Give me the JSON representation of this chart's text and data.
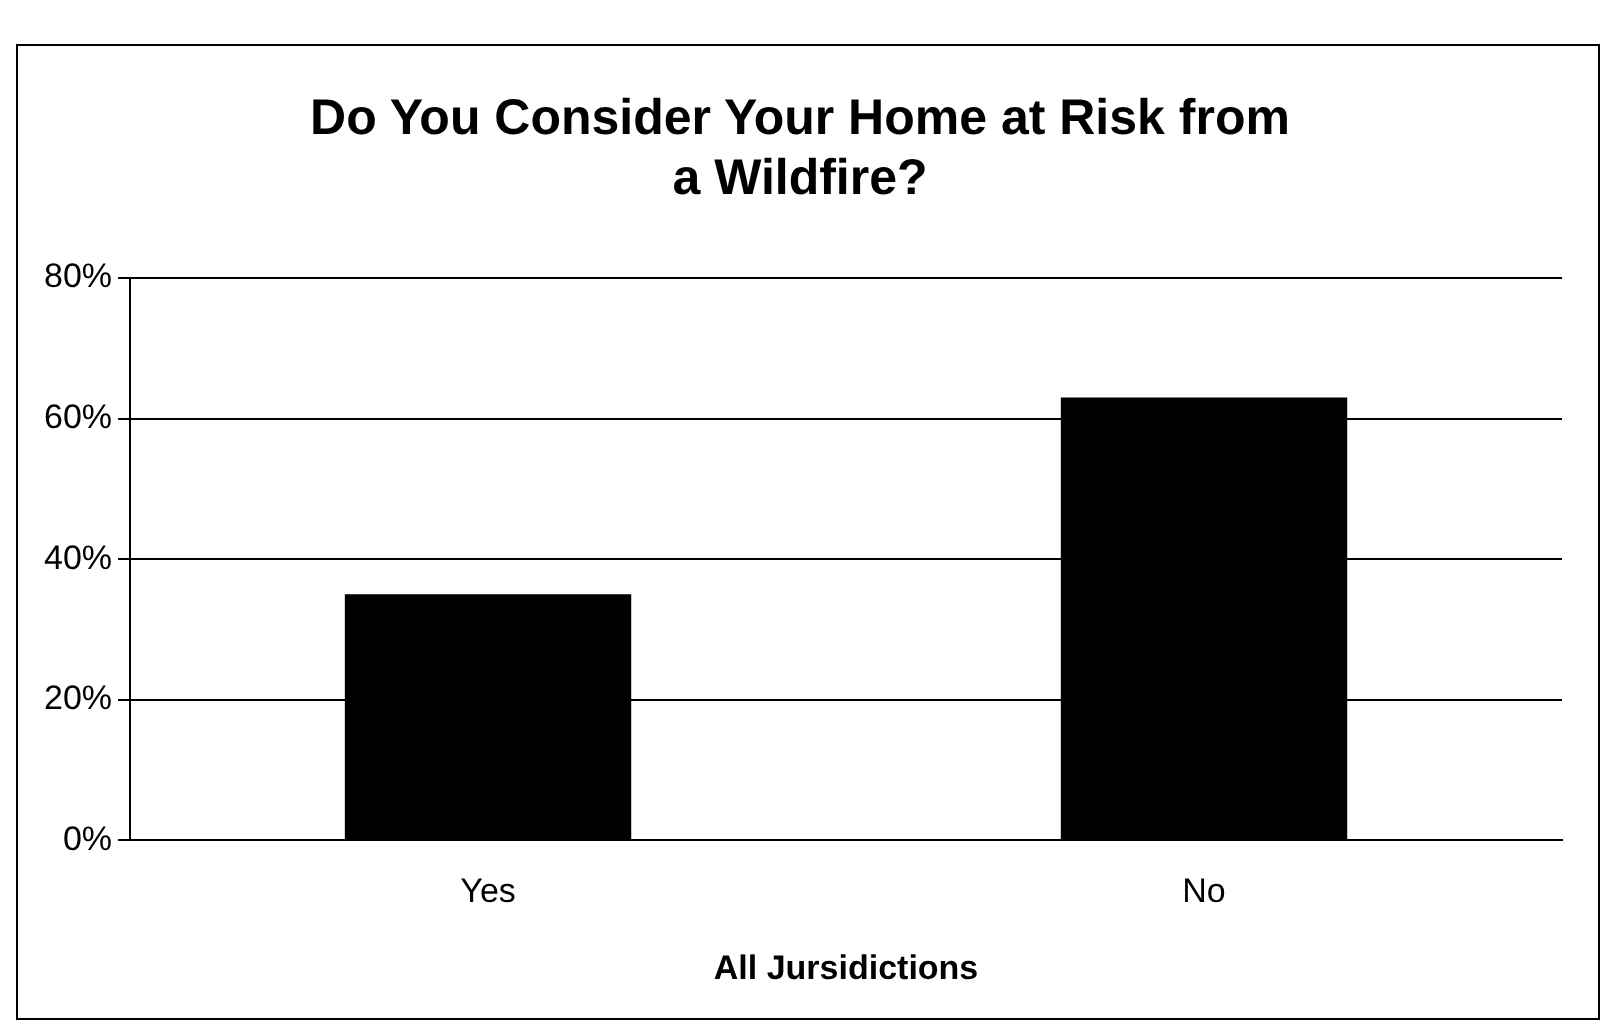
{
  "chart_data": {
    "type": "bar",
    "title": "Do You Consider Your Home at Risk from a Wildfire?",
    "xlabel": "All Jursidictions",
    "categories": [
      "Yes",
      "No"
    ],
    "values": [
      35,
      63
    ],
    "color": "#000000",
    "ylim": [
      0,
      80
    ],
    "yticks": [
      {
        "value": 0,
        "label": "0%"
      },
      {
        "value": 20,
        "label": "20%"
      },
      {
        "value": 40,
        "label": "40%"
      },
      {
        "value": 60,
        "label": "60%"
      },
      {
        "value": 80,
        "label": "80%"
      }
    ],
    "grid": "y",
    "legend": false
  }
}
